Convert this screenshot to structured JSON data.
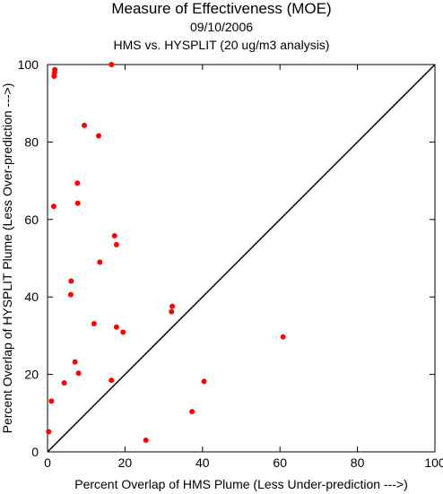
{
  "chart_data": {
    "type": "scatter",
    "title": "Measure of Effectiveness (MOE)",
    "subtitle_date": "09/10/2006",
    "subtitle_analysis": "HMS vs. HYSPLIT  (20 ug/m3 analysis)",
    "xlabel": "Percent Overlap of HMS Plume (Less Under-prediction --->)",
    "ylabel": "Percent Overlap of HYSPLIT Plume (Less Over-prediction --->)",
    "xlim": [
      0,
      100
    ],
    "ylim": [
      0,
      100
    ],
    "xticks": [
      "0",
      "20",
      "40",
      "60",
      "80",
      "100"
    ],
    "yticks": [
      "0",
      "20",
      "40",
      "60",
      "80",
      "100"
    ],
    "reference_line": "diagonal 1:1",
    "point_color": "#ff0000",
    "points": [
      {
        "x": 16.5,
        "y": 100.0
      },
      {
        "x": 1.9,
        "y": 98.7
      },
      {
        "x": 1.8,
        "y": 97.9
      },
      {
        "x": 1.7,
        "y": 97.0
      },
      {
        "x": 9.5,
        "y": 84.3
      },
      {
        "x": 13.2,
        "y": 81.6
      },
      {
        "x": 7.7,
        "y": 69.4
      },
      {
        "x": 1.6,
        "y": 63.4
      },
      {
        "x": 7.8,
        "y": 64.2
      },
      {
        "x": 17.3,
        "y": 55.8
      },
      {
        "x": 17.8,
        "y": 53.5
      },
      {
        "x": 13.5,
        "y": 49.0
      },
      {
        "x": 6.1,
        "y": 44.1
      },
      {
        "x": 6.0,
        "y": 40.6
      },
      {
        "x": 32.2,
        "y": 37.6
      },
      {
        "x": 32.0,
        "y": 36.2
      },
      {
        "x": 12.0,
        "y": 33.1
      },
      {
        "x": 17.8,
        "y": 32.2
      },
      {
        "x": 19.5,
        "y": 30.9
      },
      {
        "x": 60.8,
        "y": 29.7
      },
      {
        "x": 7.1,
        "y": 23.2
      },
      {
        "x": 8.0,
        "y": 20.3
      },
      {
        "x": 16.5,
        "y": 18.5
      },
      {
        "x": 40.4,
        "y": 18.2
      },
      {
        "x": 4.3,
        "y": 17.8
      },
      {
        "x": 1.0,
        "y": 13.1
      },
      {
        "x": 37.3,
        "y": 10.4
      },
      {
        "x": 0.3,
        "y": 5.2
      },
      {
        "x": 25.4,
        "y": 3.0
      }
    ]
  }
}
